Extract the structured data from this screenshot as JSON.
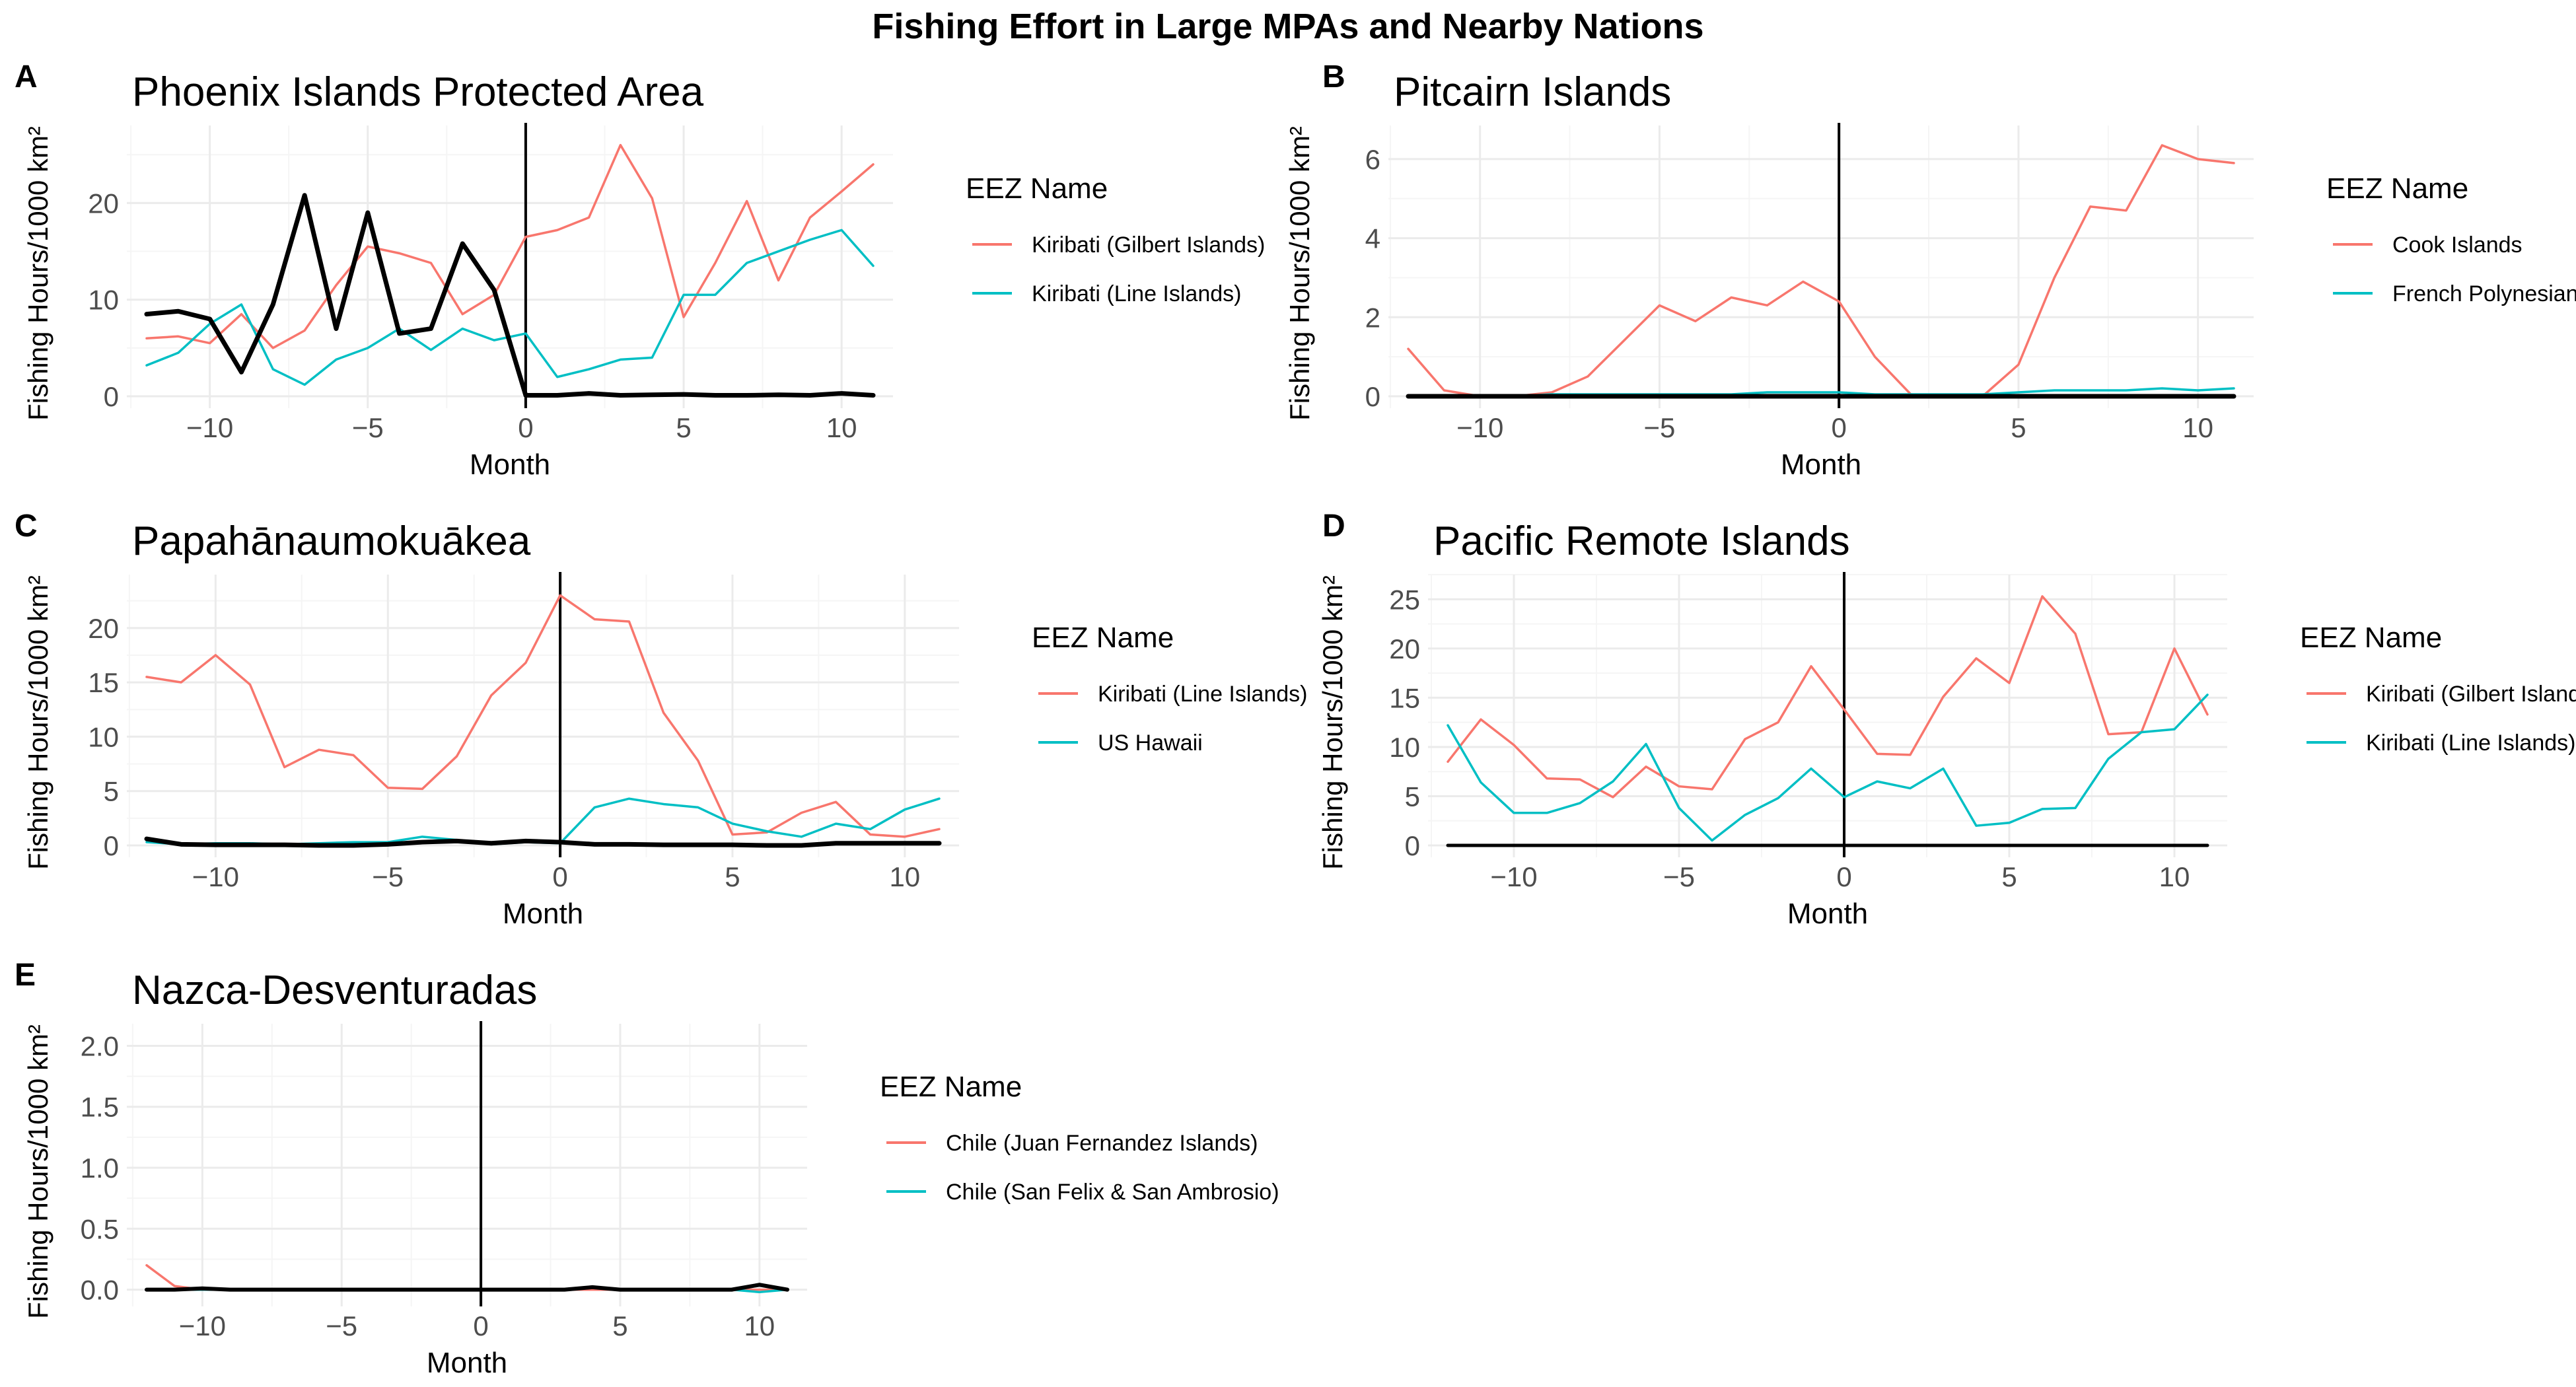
{
  "figure": {
    "title": "Fishing Effort in Large MPAs and Nearby Nations",
    "colors": {
      "red": "#F8766D",
      "teal": "#00BFC4",
      "mpa": "#000000",
      "grid_major": "#EBEBEB",
      "grid_minor": "#F5F5F5"
    }
  },
  "chart_data": [
    {
      "panel": "A",
      "type": "line",
      "title": "Phoenix Islands Protected Area",
      "xlabel": "Month",
      "ylabel": "Fishing Hours/1000 km²",
      "xlim": [
        -12,
        11
      ],
      "ylim": [
        0,
        27
      ],
      "xticks": [
        -10,
        -5,
        0,
        5,
        10
      ],
      "yticks": [
        0,
        10,
        20
      ],
      "vline": 0,
      "grid": true,
      "legend_title": "EEZ Name",
      "legend_position": "right",
      "x": [
        -12,
        -11,
        -10,
        -9,
        -8,
        -7,
        -6,
        -5,
        -4,
        -3,
        -2,
        -1,
        0,
        1,
        2,
        3,
        4,
        5,
        6,
        7,
        8,
        9,
        10,
        11
      ],
      "series": [
        {
          "name": "Kiribati (Gilbert Islands)",
          "color": "#F8766D",
          "values": [
            6,
            6.2,
            5.5,
            8.5,
            5,
            6.8,
            11.5,
            15.5,
            14.8,
            13.8,
            8.5,
            10.5,
            16.5,
            17.2,
            18.5,
            26,
            20.5,
            8.2,
            13.8,
            20.2,
            12,
            18.5,
            21.2,
            24
          ]
        },
        {
          "name": "Kiribati (Line Islands)",
          "color": "#00BFC4",
          "values": [
            3.2,
            4.5,
            7.5,
            9.5,
            2.8,
            1.2,
            3.8,
            5,
            7,
            4.8,
            7,
            5.8,
            6.5,
            2,
            2.8,
            3.8,
            4,
            10.5,
            10.5,
            13.8,
            15,
            16.2,
            17.2,
            13.5
          ]
        },
        {
          "name": "",
          "color": "#000000",
          "width": 7,
          "values": [
            8.5,
            8.8,
            8,
            2.5,
            9.5,
            20.8,
            7,
            19,
            6.5,
            7,
            15.8,
            11,
            0.1,
            0.1,
            0.3,
            0.1,
            0.15,
            0.2,
            0.1,
            0.1,
            0.15,
            0.1,
            0.3,
            0.1
          ]
        }
      ]
    },
    {
      "panel": "B",
      "type": "line",
      "title": "Pitcairn Islands",
      "xlabel": "Month",
      "ylabel": "Fishing Hours/1000 km²",
      "xlim": [
        -12,
        11
      ],
      "ylim": [
        0,
        6.6
      ],
      "xticks": [
        -10,
        -5,
        0,
        5,
        10
      ],
      "yticks": [
        0,
        2,
        4,
        6
      ],
      "vline": 0,
      "grid": true,
      "legend_title": "EEZ Name",
      "legend_position": "right",
      "x": [
        -12,
        -11,
        -10,
        -9,
        -8,
        -7,
        -6,
        -5,
        -4,
        -3,
        -2,
        -1,
        0,
        1,
        2,
        3,
        4,
        5,
        6,
        7,
        8,
        9,
        10,
        11
      ],
      "series": [
        {
          "name": "Cook Islands",
          "color": "#F8766D",
          "values": [
            1.2,
            0.15,
            0,
            0,
            0.1,
            0.5,
            1.4,
            2.3,
            1.9,
            2.5,
            2.3,
            2.9,
            2.4,
            1,
            0.05,
            0,
            0,
            0.8,
            3,
            4.8,
            4.7,
            6.35,
            6,
            5.9
          ]
        },
        {
          "name": "French Polynesian",
          "color": "#00BFC4",
          "values": [
            0,
            0,
            0,
            0,
            0.05,
            0.05,
            0.05,
            0.05,
            0.05,
            0.05,
            0.1,
            0.1,
            0.1,
            0.05,
            0.05,
            0.05,
            0.05,
            0.1,
            0.15,
            0.15,
            0.15,
            0.2,
            0.15,
            0.2
          ]
        },
        {
          "name": "",
          "color": "#000000",
          "width": 7,
          "values": [
            0,
            0,
            0,
            0,
            0,
            0,
            0,
            0,
            0,
            0,
            0,
            0,
            0,
            0,
            0,
            0,
            0,
            0,
            0,
            0,
            0,
            0,
            0,
            0
          ]
        }
      ]
    },
    {
      "panel": "C",
      "type": "line",
      "title": "Papahānaumokuākea",
      "xlabel": "Month",
      "ylabel": "Fishing Hours/1000 km²",
      "xlim": [
        -12,
        11
      ],
      "ylim": [
        0,
        24
      ],
      "xticks": [
        -10,
        -5,
        0,
        5,
        10
      ],
      "yticks": [
        0,
        5,
        10,
        15,
        20
      ],
      "vline": 0,
      "grid": true,
      "legend_title": "EEZ Name",
      "legend_position": "right",
      "x": [
        -12,
        -11,
        -10,
        -9,
        -8,
        -7,
        -6,
        -5,
        -4,
        -3,
        -2,
        -1,
        0,
        1,
        2,
        3,
        4,
        5,
        6,
        7,
        8,
        9,
        10,
        11
      ],
      "series": [
        {
          "name": "Kiribati (Line Islands)",
          "color": "#F8766D",
          "values": [
            15.5,
            15,
            17.5,
            14.8,
            7.2,
            8.8,
            8.3,
            5.3,
            5.2,
            8.2,
            13.8,
            16.8,
            23,
            20.8,
            20.6,
            12.2,
            7.8,
            1,
            1.2,
            3,
            4,
            1,
            0.8,
            1.5
          ]
        },
        {
          "name": "US Hawaii",
          "color": "#00BFC4",
          "values": [
            0.3,
            0.1,
            0.2,
            0.2,
            0.1,
            0.2,
            0.3,
            0.3,
            0.8,
            0.5,
            0.1,
            0.3,
            0.2,
            3.5,
            4.3,
            3.8,
            3.5,
            2,
            1.3,
            0.8,
            2,
            1.5,
            3.3,
            4.3
          ]
        },
        {
          "name": "",
          "color": "#000000",
          "width": 7,
          "values": [
            0.6,
            0.1,
            0.05,
            0.05,
            0.05,
            0,
            0,
            0.1,
            0.3,
            0.4,
            0.2,
            0.4,
            0.3,
            0.1,
            0.1,
            0.05,
            0.05,
            0.05,
            0,
            0,
            0.2,
            0.2,
            0.2,
            0.2
          ]
        }
      ]
    },
    {
      "panel": "D",
      "type": "line",
      "title": "Pacific Remote Islands",
      "xlabel": "Month",
      "ylabel": "Fishing Hours/1000 km²",
      "xlim": [
        -12,
        11
      ],
      "ylim": [
        0,
        26.5
      ],
      "xticks": [
        -10,
        -5,
        0,
        5,
        10
      ],
      "yticks": [
        0,
        5,
        10,
        15,
        20,
        25
      ],
      "vline": 0,
      "grid": true,
      "legend_title": "EEZ Name",
      "legend_position": "right",
      "x": [
        -12,
        -11,
        -10,
        -9,
        -8,
        -7,
        -6,
        -5,
        -4,
        -3,
        -2,
        -1,
        0,
        1,
        2,
        3,
        4,
        5,
        6,
        7,
        8,
        9,
        10,
        11
      ],
      "series": [
        {
          "name": "Kiribati (Gilbert Islands)",
          "color": "#F8766D",
          "values": [
            8.5,
            12.8,
            10.2,
            6.8,
            6.7,
            4.9,
            8,
            6,
            5.7,
            10.8,
            12.5,
            18.2,
            13.8,
            9.3,
            9.2,
            15.1,
            19,
            16.5,
            25.3,
            21.5,
            11.3,
            11.5,
            20,
            13.3
          ]
        },
        {
          "name": "Kiribati (Line Islands)",
          "color": "#00BFC4",
          "values": [
            12.2,
            6.4,
            3.3,
            3.3,
            4.3,
            6.5,
            10.3,
            3.8,
            0.5,
            3.1,
            4.8,
            7.8,
            4.9,
            6.5,
            5.8,
            7.8,
            2,
            2.3,
            3.7,
            3.8,
            8.8,
            11.5,
            11.8,
            15.3
          ]
        },
        {
          "name": "",
          "color": "#000000",
          "width": 5,
          "values": [
            0,
            0,
            0,
            0,
            0,
            0,
            0,
            0,
            0,
            0,
            0,
            0,
            0,
            0,
            0,
            0,
            0,
            0,
            0,
            0,
            0,
            0,
            0,
            0
          ]
        }
      ]
    },
    {
      "panel": "E",
      "type": "line",
      "title": "Nazca-Desventuradas",
      "xlabel": "Month",
      "ylabel": "Fishing Hours/1000 km²",
      "xlim": [
        -12,
        11
      ],
      "ylim": [
        -0.04,
        2.1
      ],
      "xticks": [
        -10,
        -5,
        0,
        5,
        10
      ],
      "yticks": [
        0.0,
        0.5,
        1.0,
        1.5,
        2.0
      ],
      "ytick_labels": [
        "0.0",
        "0.5",
        "1.0",
        "1.5",
        "2.0"
      ],
      "vline": 0,
      "grid": true,
      "legend_title": "EEZ Name",
      "legend_position": "right",
      "x": [
        -12,
        -11,
        -10,
        -9,
        -8,
        -7,
        -6,
        -5,
        -4,
        -3,
        -2,
        -1,
        0,
        1,
        2,
        3,
        4,
        5,
        6,
        7,
        8,
        9,
        10,
        11
      ],
      "series": [
        {
          "name": "Chile (Juan Fernandez Islands)",
          "color": "#F8766D",
          "values": [
            0.2,
            0.03,
            0,
            0,
            0,
            0,
            0,
            0,
            0,
            0,
            0,
            0,
            0,
            0,
            0,
            0,
            0,
            0,
            0,
            0,
            0,
            0,
            0,
            0
          ]
        },
        {
          "name": "Chile (San Felix & San Ambrosio)",
          "color": "#00BFC4",
          "values": [
            0,
            0,
            0,
            0,
            0,
            0,
            0,
            0,
            0,
            0,
            0,
            0,
            0,
            0,
            0,
            0,
            0.02,
            0,
            0,
            0,
            0,
            0,
            -0.02,
            0
          ]
        },
        {
          "name": "",
          "color": "#000000",
          "width": 6,
          "values": [
            0,
            0,
            0.01,
            0,
            0,
            0,
            0,
            0,
            0,
            0,
            0,
            0,
            0,
            0,
            0,
            0,
            0.02,
            0,
            0,
            0,
            0,
            0,
            0.04,
            0
          ]
        }
      ]
    }
  ]
}
